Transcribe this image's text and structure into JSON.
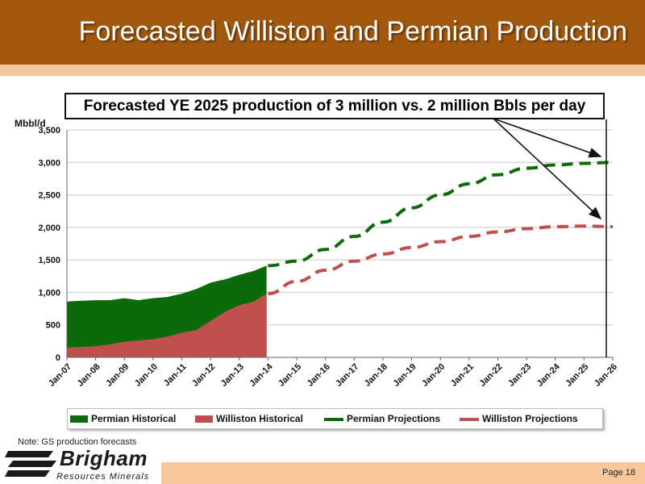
{
  "header": {
    "title": "Forecasted Williston and Permian Production"
  },
  "callout": {
    "text": "Forecasted YE 2025 production of 3 million vs. 2 million Bbls per day"
  },
  "footer": {
    "note": "Note: GS production forecasts",
    "page": "Page 18",
    "logo_name": "Brigham",
    "logo_sub": "Resources   Minerals"
  },
  "colors": {
    "header": "#a2580c",
    "stripe": "#f6c49a",
    "permian": "#0b6b0b",
    "williston": "#c0504d"
  },
  "chart_data": {
    "type": "area",
    "ylabel": "Mbbl/d",
    "ylim": [
      0,
      3500
    ],
    "yticks": [
      0,
      500,
      1000,
      1500,
      2000,
      2500,
      3000,
      3500
    ],
    "ytick_labels": [
      "0",
      "500",
      "1,000",
      "1,500",
      "2,000",
      "2,500",
      "3,000",
      "3,500"
    ],
    "categories": [
      "Jan-07",
      "Jan-08",
      "Jan-09",
      "Jan-10",
      "Jan-11",
      "Jan-12",
      "Jan-13",
      "Jan-14",
      "Jan-15",
      "Jan-16",
      "Jan-17",
      "Jan-18",
      "Jan-19",
      "Jan-20",
      "Jan-21",
      "Jan-22",
      "Jan-23",
      "Jan-24",
      "Jan-25",
      "Jan-26"
    ],
    "grid": true,
    "legend_position": "bottom",
    "series": [
      {
        "name": "Permian Historical",
        "kind": "area",
        "color": "#0b6b0b",
        "x": [
          2007.0,
          2007.5,
          2008.0,
          2008.5,
          2009.0,
          2009.5,
          2010.0,
          2010.5,
          2011.0,
          2011.5,
          2012.0,
          2012.5,
          2013.0,
          2013.5,
          2013.95
        ],
        "values": [
          860,
          870,
          880,
          880,
          910,
          880,
          910,
          930,
          980,
          1050,
          1150,
          1200,
          1270,
          1330,
          1410
        ]
      },
      {
        "name": "Williston Historical",
        "kind": "area",
        "color": "#c0504d",
        "x": [
          2007.0,
          2007.5,
          2008.0,
          2008.5,
          2009.0,
          2009.5,
          2010.0,
          2010.5,
          2011.0,
          2011.5,
          2012.0,
          2012.5,
          2013.0,
          2013.5,
          2013.95
        ],
        "values": [
          150,
          160,
          170,
          200,
          240,
          260,
          280,
          320,
          380,
          420,
          560,
          700,
          800,
          860,
          980
        ]
      },
      {
        "name": "Permian Projections",
        "kind": "dashed-line",
        "color": "#0b6b0b",
        "x": [
          2014,
          2015,
          2016,
          2017,
          2018,
          2019,
          2020,
          2021,
          2022,
          2023,
          2024,
          2025,
          2026
        ],
        "values": [
          1410,
          1480,
          1660,
          1860,
          2080,
          2300,
          2500,
          2670,
          2810,
          2910,
          2960,
          2985,
          3000
        ]
      },
      {
        "name": "Williston Projections",
        "kind": "dashed-line",
        "color": "#c0504d",
        "x": [
          2014,
          2015,
          2016,
          2017,
          2018,
          2019,
          2020,
          2021,
          2022,
          2023,
          2024,
          2025,
          2026
        ],
        "values": [
          980,
          1170,
          1340,
          1480,
          1590,
          1690,
          1780,
          1860,
          1930,
          1980,
          2010,
          2020,
          2010
        ]
      }
    ]
  }
}
